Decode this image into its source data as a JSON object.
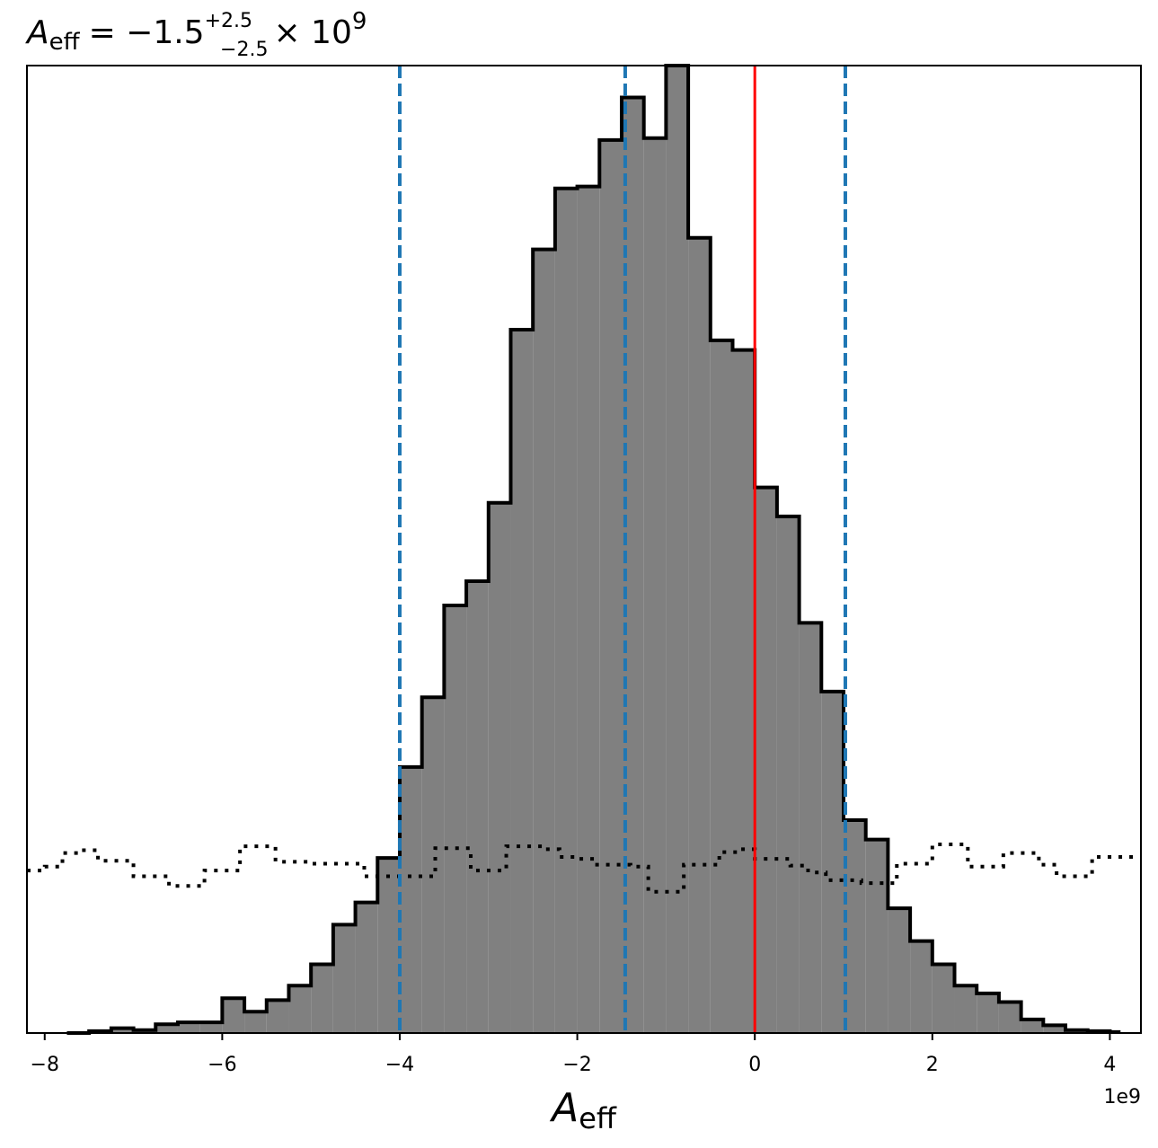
{
  "chart_data": {
    "type": "histogram",
    "title": {
      "symbol": "A",
      "symbol_sub": "eff",
      "median": "= −1.5",
      "upper_err": "+2.5",
      "lower_err": "−2.5",
      "scale": "× 10",
      "scale_exp": "9"
    },
    "xlabel": {
      "symbol": "A",
      "sub": "eff"
    },
    "x_offset_label": "1e9",
    "xlim": [
      -8.2,
      4.35
    ],
    "ylim": [
      0,
      1.0
    ],
    "xticks": [
      {
        "value": -8,
        "label": "−8"
      },
      {
        "value": -6,
        "label": "−6"
      },
      {
        "value": -4,
        "label": "−4"
      },
      {
        "value": -2,
        "label": "−2"
      },
      {
        "value": 0,
        "label": "0"
      },
      {
        "value": 2,
        "label": "2"
      },
      {
        "value": 4,
        "label": "4"
      }
    ],
    "histogram": {
      "fill_color": "#808080",
      "edge_color": "#000000",
      "bin_edges": [
        -7.75,
        -7.5,
        -7.25,
        -7.0,
        -6.75,
        -6.5,
        -6.25,
        -6.0,
        -5.75,
        -5.5,
        -5.25,
        -5.0,
        -4.75,
        -4.5,
        -4.25,
        -4.0,
        -3.75,
        -3.5,
        -3.25,
        -3.0,
        -2.75,
        -2.5,
        -2.25,
        -2.0,
        -1.75,
        -1.5,
        -1.25,
        -1.0,
        -0.75,
        -0.5,
        -0.25,
        0.0,
        0.25,
        0.5,
        0.75,
        1.0,
        1.25,
        1.5,
        1.75,
        2.0,
        2.25,
        2.5,
        2.75,
        3.0,
        3.25,
        3.5,
        3.75,
        4.0,
        4.1
      ],
      "counts": [
        0.0,
        0.002,
        0.005,
        0.003,
        0.009,
        0.011,
        0.011,
        0.036,
        0.022,
        0.034,
        0.049,
        0.071,
        0.112,
        0.135,
        0.181,
        0.275,
        0.347,
        0.442,
        0.467,
        0.548,
        0.727,
        0.81,
        0.873,
        0.875,
        0.923,
        0.967,
        0.925,
        1.0,
        0.822,
        0.716,
        0.706,
        0.564,
        0.534,
        0.424,
        0.353,
        0.22,
        0.2,
        0.129,
        0.095,
        0.071,
        0.049,
        0.041,
        0.032,
        0.014,
        0.008,
        0.003,
        0.002,
        0.001
      ]
    },
    "prior_curve": {
      "style": "dotted",
      "color": "#000000",
      "x": [
        -8.2,
        -8.0,
        -7.8,
        -7.6,
        -7.4,
        -7.2,
        -7.0,
        -6.8,
        -6.6,
        -6.4,
        -6.2,
        -6.0,
        -5.8,
        -5.6,
        -5.4,
        -5.2,
        -5.0,
        -4.8,
        -4.6,
        -4.4,
        -4.2,
        -4.0,
        -3.8,
        -3.6,
        -3.4,
        -3.2,
        -3.0,
        -2.8,
        -2.6,
        -2.4,
        -2.2,
        -2.0,
        -1.8,
        -1.6,
        -1.4,
        -1.2,
        -1.0,
        -0.8,
        -0.6,
        -0.4,
        -0.2,
        0.0,
        0.2,
        0.4,
        0.6,
        0.8,
        1.0,
        1.2,
        1.4,
        1.6,
        1.8,
        2.0,
        2.2,
        2.4,
        2.6,
        2.8,
        3.0,
        3.2,
        3.4,
        3.6,
        3.8,
        4.0,
        4.35
      ],
      "y": [
        0.168,
        0.172,
        0.186,
        0.189,
        0.178,
        0.178,
        0.162,
        0.162,
        0.152,
        0.152,
        0.168,
        0.168,
        0.193,
        0.193,
        0.177,
        0.177,
        0.175,
        0.175,
        0.175,
        0.162,
        0.162,
        0.162,
        0.162,
        0.191,
        0.191,
        0.168,
        0.168,
        0.193,
        0.193,
        0.19,
        0.182,
        0.18,
        0.174,
        0.174,
        0.172,
        0.146,
        0.146,
        0.174,
        0.174,
        0.187,
        0.19,
        0.18,
        0.18,
        0.173,
        0.166,
        0.158,
        0.158,
        0.155,
        0.155,
        0.175,
        0.175,
        0.195,
        0.195,
        0.172,
        0.172,
        0.186,
        0.186,
        0.174,
        0.162,
        0.162,
        0.182,
        0.182,
        0.182
      ]
    },
    "vertical_lines": [
      {
        "x": -4.0,
        "color": "#1f77b4",
        "style": "dashed"
      },
      {
        "x": -1.46,
        "color": "#1f77b4",
        "style": "dashed"
      },
      {
        "x": 1.02,
        "color": "#1f77b4",
        "style": "dashed"
      },
      {
        "x": 0.0,
        "color": "#ff0000",
        "style": "solid"
      }
    ]
  }
}
